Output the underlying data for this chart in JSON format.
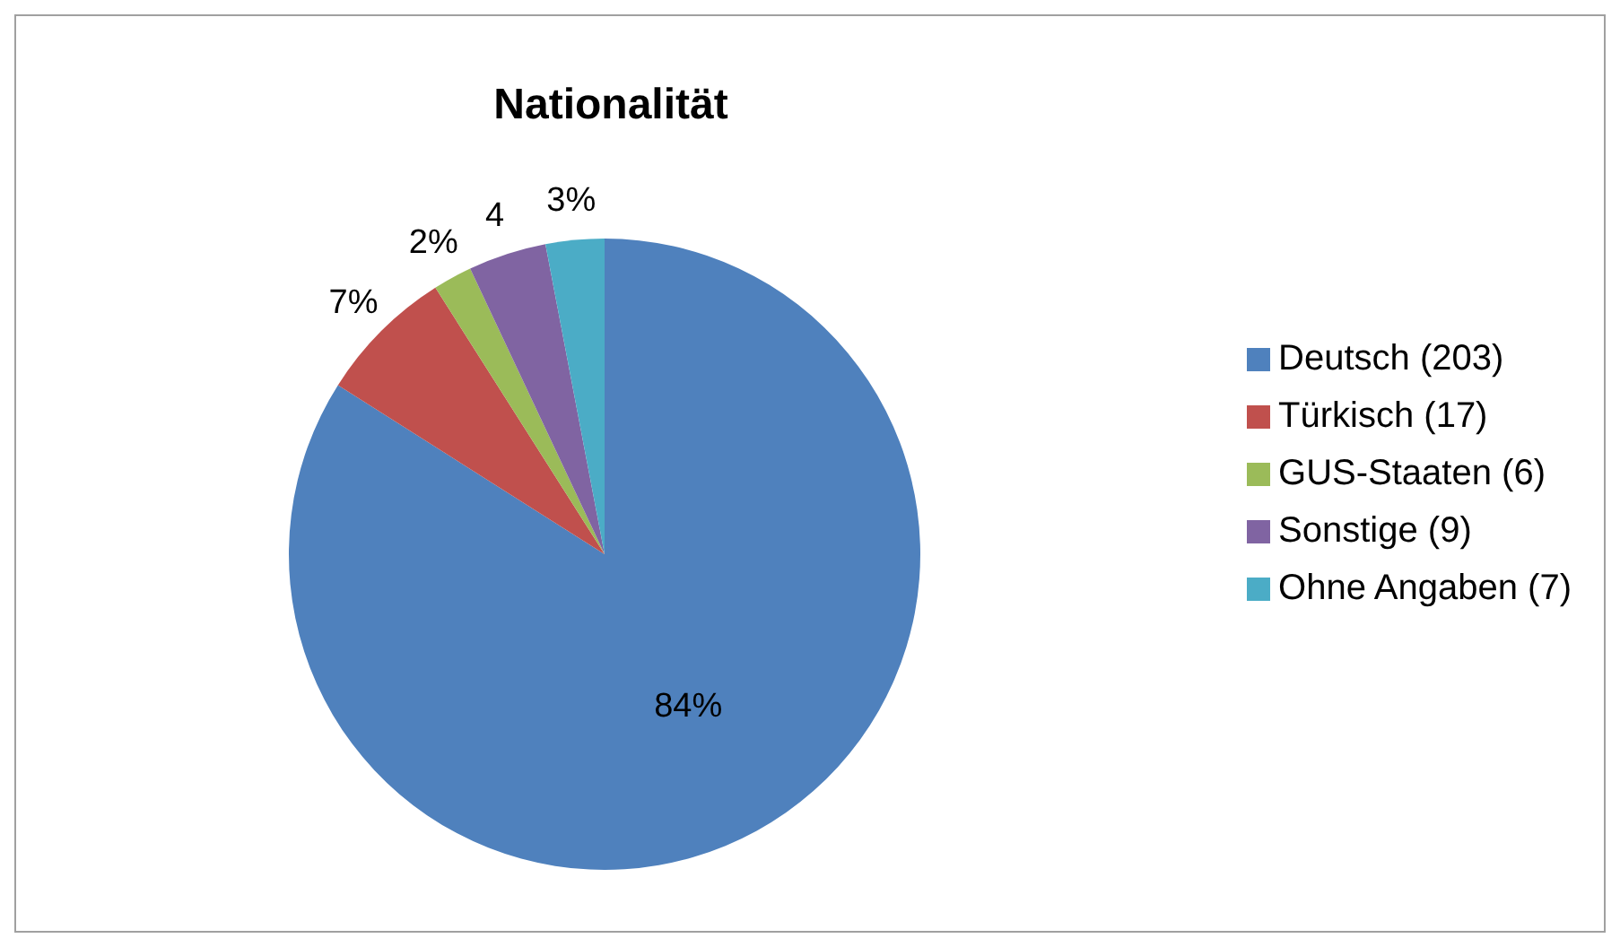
{
  "chart_data": {
    "type": "pie",
    "title": "Nationalität",
    "categories": [
      "Deutsch (203)",
      "Türkisch (17)",
      "GUS-Staaten (6)",
      "Sonstige (9)",
      "Ohne Angaben (7)"
    ],
    "values": [
      84,
      7,
      2,
      4,
      3
    ],
    "colors": [
      "#4f81bd",
      "#c0504d",
      "#9bbb59",
      "#8064a2",
      "#4bacc6"
    ],
    "value_labels": [
      "84%",
      "7%",
      "2%",
      "4",
      "3%"
    ],
    "legend": "right"
  }
}
